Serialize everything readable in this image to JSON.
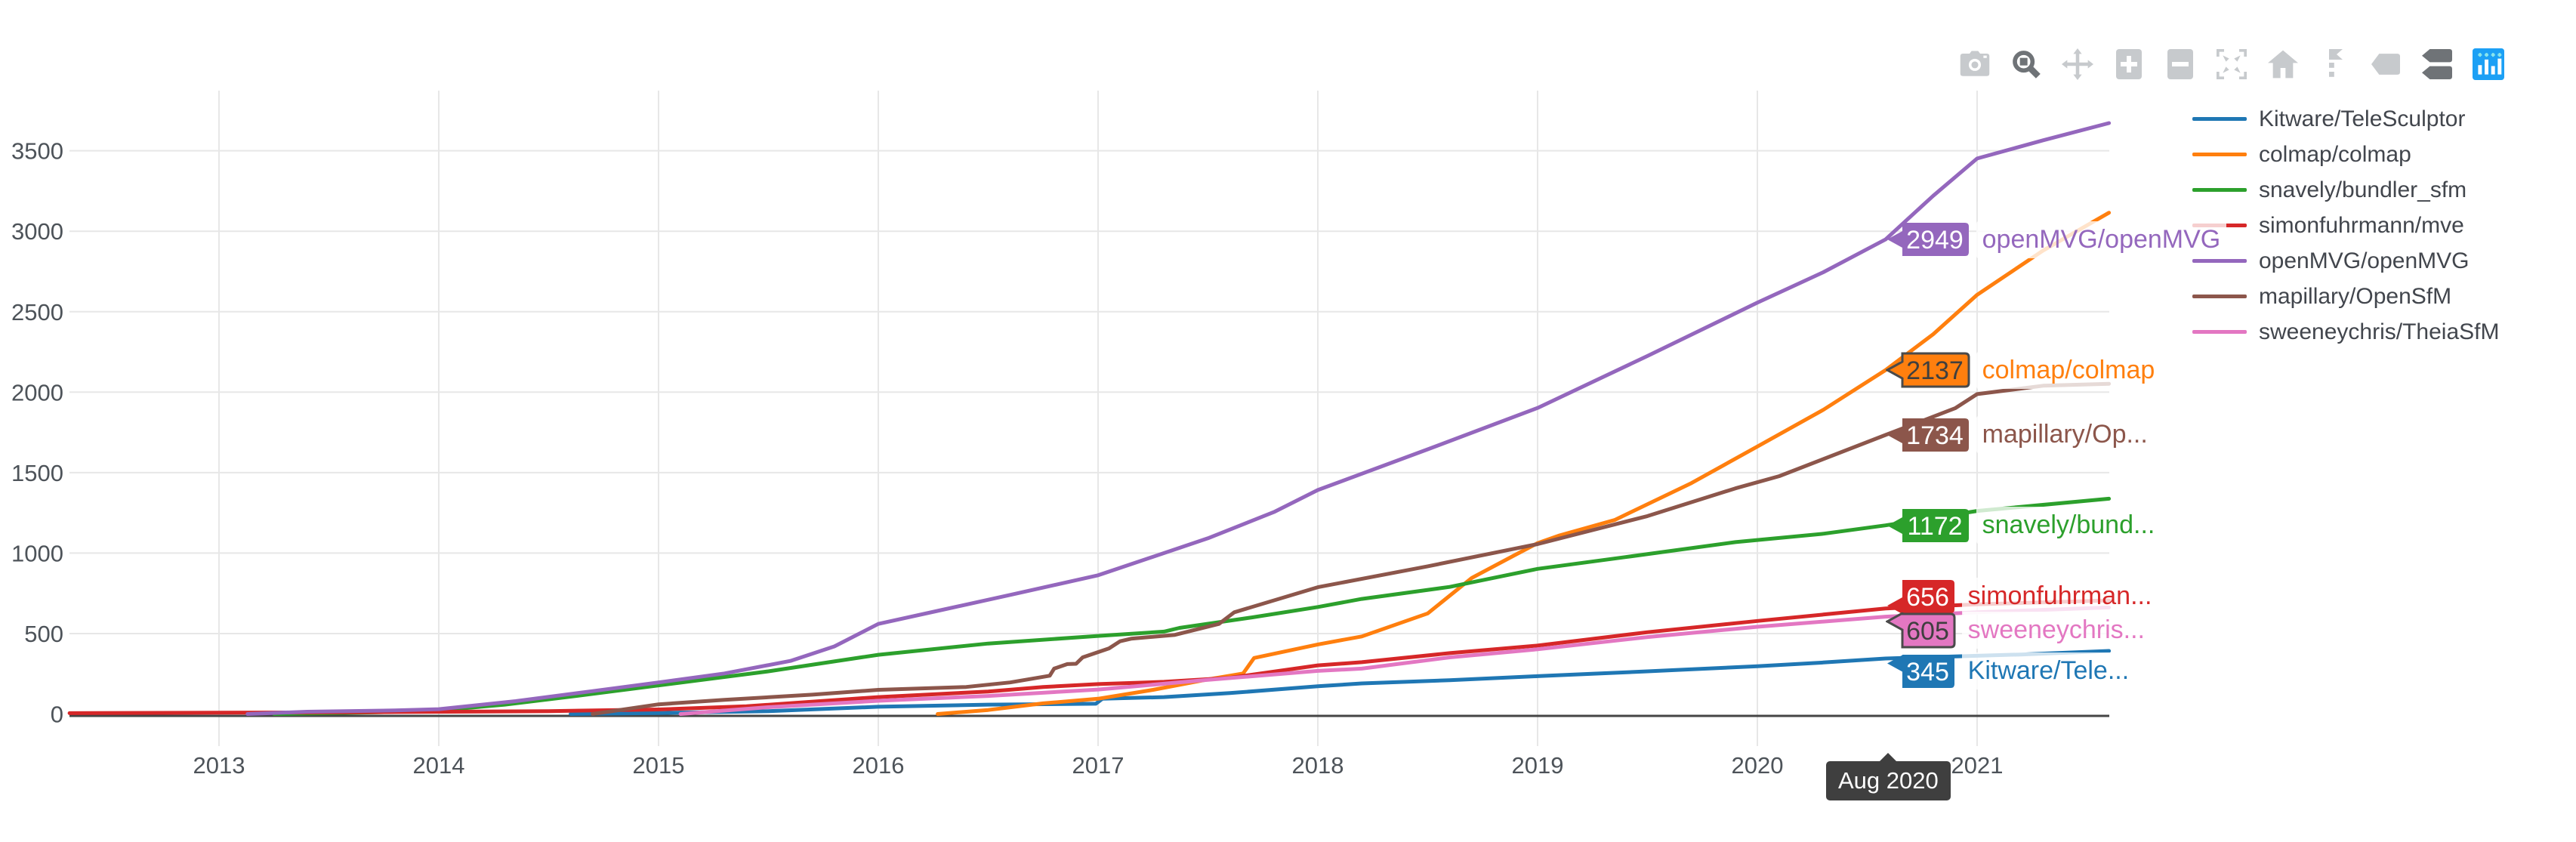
{
  "colors": {
    "background": "#ffffff",
    "grid": "#e7e7e7",
    "axis_line": "#444444",
    "tick_text": "#4d5359",
    "legend_text": "#42464d",
    "hover_bg": "#3f3f3f",
    "hover_text": "#ffffff",
    "modebar_icon": "#c7cacd",
    "modebar_icon_active": "#6f7377",
    "logo_bg": "#1ca0f5",
    "logo_bars": "#ffffff",
    "logo_plus": "#8be6ec"
  },
  "modebar": {
    "buttons": [
      {
        "name": "camera-icon",
        "title": "Download plot as a png",
        "active": false,
        "group": 0
      },
      {
        "name": "zoom-icon",
        "title": "Zoom",
        "active": true,
        "group": 0
      },
      {
        "name": "pan-icon",
        "title": "Pan",
        "active": false,
        "group": 0
      },
      {
        "name": "zoom-in-icon",
        "title": "Zoom in",
        "active": false,
        "group": 1
      },
      {
        "name": "zoom-out-icon",
        "title": "Zoom out",
        "active": false,
        "group": 1
      },
      {
        "name": "autoscale-icon",
        "title": "Autoscale",
        "active": false,
        "group": 1
      },
      {
        "name": "home-icon",
        "title": "Reset axes",
        "active": false,
        "group": 1
      },
      {
        "name": "spikelines-icon",
        "title": "Toggle Spike Lines",
        "active": false,
        "group": 2
      },
      {
        "name": "hover-closest-icon",
        "title": "Show closest data on hover",
        "active": false,
        "group": 2
      },
      {
        "name": "hover-compare-icon",
        "title": "Compare data on hover",
        "active": true,
        "group": 2
      },
      {
        "name": "plotly-logo-icon",
        "title": "Produced with Plotly",
        "active": false,
        "group": 3
      }
    ]
  },
  "legend": {
    "entries": [
      {
        "label": "Kitware/TeleSculptor",
        "color": "#1f77b4"
      },
      {
        "label": "colmap/colmap",
        "color": "#ff7f0e"
      },
      {
        "label": "snavely/bundler_sfm",
        "color": "#2ca02c"
      },
      {
        "label": "simonfuhrmann/mve",
        "color": "#d62728"
      },
      {
        "label": "openMVG/openMVG",
        "color": "#9467bd"
      },
      {
        "label": "mapillary/OpenSfM",
        "color": "#8c564b"
      },
      {
        "label": "sweeneychris/TheiaSfM",
        "color": "#e377c2"
      }
    ]
  },
  "hover": {
    "text": "Aug 2020",
    "x_year": 2020.583
  },
  "chart_data": {
    "type": "line",
    "title": "",
    "xlabel": "",
    "ylabel": "",
    "grid": true,
    "legend_position": "right",
    "x_ticks": [
      "2013",
      "2014",
      "2015",
      "2016",
      "2017",
      "2018",
      "2019",
      "2020",
      "2021"
    ],
    "y_ticks": [
      "0",
      "500",
      "1000",
      "1500",
      "2000",
      "2500",
      "3000",
      "3500"
    ],
    "x_range_years": [
      2012.32,
      2021.6
    ],
    "y_range": [
      0,
      3876
    ],
    "annotations": [
      {
        "value": "2949",
        "label": "openMVG/openMVG",
        "color": "#9467bd",
        "text_color": "#ffffff",
        "border": "none"
      },
      {
        "value": "2137",
        "label": "colmap/colmap",
        "color": "#ff7f0e",
        "text_color": "#3f3f3f",
        "border": "#4a4a4a"
      },
      {
        "value": "1734",
        "label": "mapillary/Op...",
        "color": "#8c564b",
        "text_color": "#ffffff",
        "border": "none"
      },
      {
        "value": "1172",
        "label": "snavely/bund...",
        "color": "#2ca02c",
        "text_color": "#ffffff",
        "border": "none"
      },
      {
        "value": "656",
        "label": "simonfuhrman...",
        "color": "#d62728",
        "text_color": "#ffffff",
        "border": "none"
      },
      {
        "value": "605",
        "label": "sweeneychris...",
        "color": "#e377c2",
        "text_color": "#3f3f3f",
        "border": "#4a4a4a"
      },
      {
        "value": "345",
        "label": "Kitware/Tele...",
        "color": "#1f77b4",
        "text_color": "#ffffff",
        "border": "none"
      }
    ],
    "series": [
      {
        "name": "Kitware/TeleSculptor",
        "color": "#1f77b4",
        "points": [
          [
            2014.6,
            0
          ],
          [
            2015.0,
            6
          ],
          [
            2015.5,
            18
          ],
          [
            2016.0,
            45
          ],
          [
            2016.5,
            58
          ],
          [
            2016.99,
            64
          ],
          [
            2017.02,
            95
          ],
          [
            2017.3,
            105
          ],
          [
            2017.6,
            130
          ],
          [
            2018.0,
            172
          ],
          [
            2018.2,
            190
          ],
          [
            2018.6,
            210
          ],
          [
            2019.0,
            235
          ],
          [
            2019.5,
            265
          ],
          [
            2020.0,
            297
          ],
          [
            2020.3,
            320
          ],
          [
            2020.583,
            345
          ],
          [
            2020.9,
            358
          ],
          [
            2021.2,
            370
          ],
          [
            2021.6,
            392
          ]
        ]
      },
      {
        "name": "colmap/colmap",
        "color": "#ff7f0e",
        "points": [
          [
            2016.27,
            0
          ],
          [
            2016.5,
            25
          ],
          [
            2016.75,
            66
          ],
          [
            2017.0,
            95
          ],
          [
            2017.25,
            150
          ],
          [
            2017.5,
            215
          ],
          [
            2017.66,
            252
          ],
          [
            2017.71,
            348
          ],
          [
            2018.0,
            432
          ],
          [
            2018.2,
            482
          ],
          [
            2018.5,
            625
          ],
          [
            2018.7,
            845
          ],
          [
            2018.9,
            990
          ],
          [
            2019.0,
            1062
          ],
          [
            2019.1,
            1110
          ],
          [
            2019.35,
            1205
          ],
          [
            2019.7,
            1435
          ],
          [
            2020.0,
            1662
          ],
          [
            2020.3,
            1890
          ],
          [
            2020.583,
            2137
          ],
          [
            2020.8,
            2360
          ],
          [
            2021.0,
            2605
          ],
          [
            2021.3,
            2880
          ],
          [
            2021.6,
            3115
          ]
        ]
      },
      {
        "name": "snavely/bundler_sfm",
        "color": "#2ca02c",
        "points": [
          [
            2013.25,
            0
          ],
          [
            2013.7,
            10
          ],
          [
            2014.0,
            22
          ],
          [
            2014.3,
            58
          ],
          [
            2014.6,
            108
          ],
          [
            2015.0,
            178
          ],
          [
            2015.5,
            265
          ],
          [
            2016.0,
            368
          ],
          [
            2016.5,
            438
          ],
          [
            2017.0,
            485
          ],
          [
            2017.3,
            512
          ],
          [
            2017.37,
            535
          ],
          [
            2017.7,
            600
          ],
          [
            2018.0,
            665
          ],
          [
            2018.2,
            715
          ],
          [
            2018.6,
            790
          ],
          [
            2019.0,
            902
          ],
          [
            2019.4,
            975
          ],
          [
            2019.9,
            1068
          ],
          [
            2020.3,
            1120
          ],
          [
            2020.583,
            1172
          ],
          [
            2021.0,
            1262
          ],
          [
            2021.6,
            1338
          ]
        ]
      },
      {
        "name": "simonfuhrmann/mve",
        "color": "#d62728",
        "points": [
          [
            2012.32,
            5
          ],
          [
            2013.0,
            8
          ],
          [
            2013.8,
            12
          ],
          [
            2014.5,
            18
          ],
          [
            2015.0,
            28
          ],
          [
            2015.4,
            48
          ],
          [
            2016.0,
            105
          ],
          [
            2016.5,
            140
          ],
          [
            2016.75,
            168
          ],
          [
            2017.0,
            186
          ],
          [
            2017.3,
            200
          ],
          [
            2017.6,
            225
          ],
          [
            2018.0,
            302
          ],
          [
            2018.2,
            322
          ],
          [
            2018.6,
            378
          ],
          [
            2019.0,
            425
          ],
          [
            2019.5,
            508
          ],
          [
            2020.0,
            578
          ],
          [
            2020.3,
            618
          ],
          [
            2020.583,
            656
          ],
          [
            2021.0,
            682
          ],
          [
            2021.6,
            706
          ]
        ]
      },
      {
        "name": "openMVG/openMVG",
        "color": "#9467bd",
        "points": [
          [
            2013.13,
            0
          ],
          [
            2013.4,
            14
          ],
          [
            2013.8,
            22
          ],
          [
            2014.0,
            30
          ],
          [
            2014.35,
            80
          ],
          [
            2014.7,
            142
          ],
          [
            2015.0,
            196
          ],
          [
            2015.3,
            252
          ],
          [
            2015.6,
            330
          ],
          [
            2015.8,
            420
          ],
          [
            2016.0,
            560
          ],
          [
            2016.3,
            650
          ],
          [
            2016.6,
            740
          ],
          [
            2017.0,
            862
          ],
          [
            2017.5,
            1092
          ],
          [
            2017.8,
            1255
          ],
          [
            2018.0,
            1392
          ],
          [
            2018.5,
            1645
          ],
          [
            2019.0,
            1902
          ],
          [
            2019.5,
            2225
          ],
          [
            2020.0,
            2556
          ],
          [
            2020.3,
            2745
          ],
          [
            2020.583,
            2949
          ],
          [
            2020.8,
            3220
          ],
          [
            2021.0,
            3452
          ],
          [
            2021.3,
            3565
          ],
          [
            2021.6,
            3672
          ]
        ]
      },
      {
        "name": "mapillary/OpenSfM",
        "color": "#8c564b",
        "points": [
          [
            2014.7,
            0
          ],
          [
            2015.0,
            60
          ],
          [
            2015.3,
            88
          ],
          [
            2015.7,
            120
          ],
          [
            2016.0,
            150
          ],
          [
            2016.4,
            168
          ],
          [
            2016.6,
            196
          ],
          [
            2016.78,
            238
          ],
          [
            2016.8,
            282
          ],
          [
            2016.86,
            310
          ],
          [
            2016.9,
            312
          ],
          [
            2016.93,
            352
          ],
          [
            2017.05,
            408
          ],
          [
            2017.1,
            452
          ],
          [
            2017.15,
            468
          ],
          [
            2017.35,
            492
          ],
          [
            2017.55,
            560
          ],
          [
            2017.62,
            632
          ],
          [
            2018.0,
            788
          ],
          [
            2018.5,
            918
          ],
          [
            2019.0,
            1056
          ],
          [
            2019.5,
            1230
          ],
          [
            2019.9,
            1402
          ],
          [
            2020.1,
            1478
          ],
          [
            2020.583,
            1734
          ],
          [
            2020.9,
            1900
          ],
          [
            2021.0,
            1988
          ],
          [
            2021.3,
            2040
          ],
          [
            2021.6,
            2052
          ]
        ]
      },
      {
        "name": "sweeneychris/TheiaSfM",
        "color": "#e377c2",
        "points": [
          [
            2015.1,
            0
          ],
          [
            2015.5,
            42
          ],
          [
            2016.0,
            82
          ],
          [
            2016.5,
            112
          ],
          [
            2017.0,
            152
          ],
          [
            2017.5,
            212
          ],
          [
            2018.0,
            268
          ],
          [
            2018.2,
            282
          ],
          [
            2018.6,
            352
          ],
          [
            2019.0,
            402
          ],
          [
            2019.5,
            478
          ],
          [
            2020.0,
            542
          ],
          [
            2020.583,
            605
          ],
          [
            2021.0,
            632
          ],
          [
            2021.6,
            662
          ]
        ]
      }
    ]
  }
}
